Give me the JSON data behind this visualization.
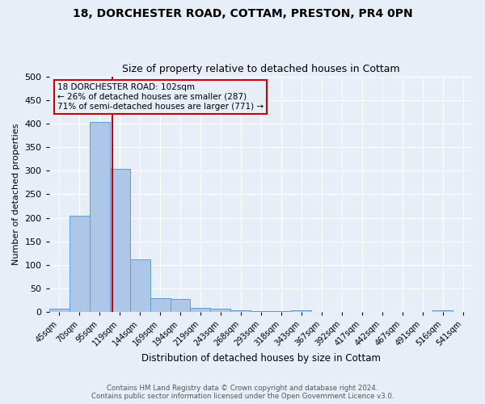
{
  "title": "18, DORCHESTER ROAD, COTTAM, PRESTON, PR4 0PN",
  "subtitle": "Size of property relative to detached houses in Cottam",
  "xlabel": "Distribution of detached houses by size in Cottam",
  "ylabel": "Number of detached properties",
  "footer_line1": "Contains HM Land Registry data © Crown copyright and database right 2024.",
  "footer_line2": "Contains public sector information licensed under the Open Government Licence v3.0.",
  "bin_labels": [
    "45sqm",
    "70sqm",
    "95sqm",
    "119sqm",
    "144sqm",
    "169sqm",
    "194sqm",
    "219sqm",
    "243sqm",
    "268sqm",
    "293sqm",
    "318sqm",
    "343sqm",
    "367sqm",
    "392sqm",
    "417sqm",
    "442sqm",
    "467sqm",
    "491sqm",
    "516sqm",
    "541sqm"
  ],
  "bar_values": [
    8,
    204,
    404,
    303,
    112,
    30,
    27,
    9,
    7,
    4,
    2,
    2,
    3,
    0,
    0,
    0,
    0,
    0,
    0,
    4,
    0
  ],
  "bar_color": "#aec6e8",
  "bar_edgecolor": "#5a9fd4",
  "red_line_x": 2.65,
  "annotation_text": "18 DORCHESTER ROAD: 102sqm\n← 26% of detached houses are smaller (287)\n71% of semi-detached houses are larger (771) →",
  "annotation_box_edgecolor": "#cc0000",
  "ylim": [
    0,
    500
  ],
  "yticks": [
    0,
    50,
    100,
    150,
    200,
    250,
    300,
    350,
    400,
    450,
    500
  ],
  "bg_color": "#e8eef8",
  "plot_bg_color": "#e8eef8",
  "grid_color": "#ffffff"
}
